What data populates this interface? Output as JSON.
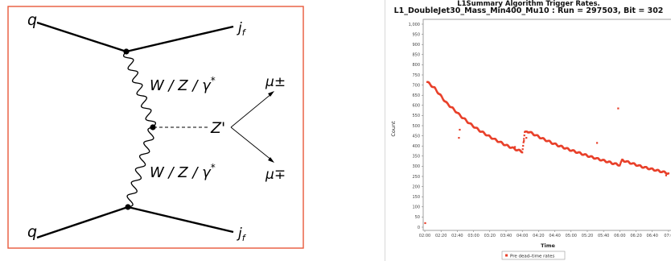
{
  "diagram": {
    "labels": {
      "q_top": "q",
      "q_bottom": "q",
      "jf_top": "j",
      "jf_bottom": "j",
      "jf_sub": "f",
      "boson_top": "W / Z / γ",
      "boson_bottom": "W / Z / γ",
      "star": "*",
      "zprime": "Z'",
      "mu_top": "μ±",
      "mu_bottom": "μ∓"
    },
    "colors": {
      "frame": "#e8593a",
      "lines": "#000000"
    }
  },
  "chart_data": {
    "type": "scatter",
    "title": "L1Summary Algorithm Trigger Rates.",
    "subtitle": "L1_DoubleJet30_Mass_Min400_Mu10 : Run = 297503, Bit = 302",
    "xlabel": "Time",
    "ylabel": "Count",
    "ylim": [
      0,
      1000
    ],
    "yticks": [
      "0",
      "50",
      "100",
      "150",
      "200",
      "250",
      "300",
      "350",
      "400",
      "450",
      "500",
      "550",
      "600",
      "650",
      "700",
      "750",
      "800",
      "850",
      "900",
      "950",
      "1,000"
    ],
    "xticks": [
      "02:00",
      "02:20",
      "02:40",
      "03:00",
      "03:20",
      "03:40",
      "04:00",
      "04:20",
      "04:40",
      "05:00",
      "05:20",
      "05:40",
      "06:00",
      "06:20",
      "06:40",
      "07:0"
    ],
    "legend": "Pre dead–time rates",
    "legend_position": "bottom",
    "marker_color": "#e8402a",
    "series": [
      {
        "name": "Pre dead–time rates",
        "points": [
          [
            "02:00",
            20
          ],
          [
            "02:03",
            715
          ],
          [
            "02:06",
            705
          ],
          [
            "02:09",
            695
          ],
          [
            "02:12",
            685
          ],
          [
            "02:15",
            670
          ],
          [
            "02:18",
            655
          ],
          [
            "02:21",
            640
          ],
          [
            "02:24",
            625
          ],
          [
            "02:27",
            610
          ],
          [
            "02:30",
            600
          ],
          [
            "02:33",
            590
          ],
          [
            "02:36",
            578
          ],
          [
            "02:39",
            568
          ],
          [
            "02:42",
            555
          ],
          [
            "02:45",
            545
          ],
          [
            "02:48",
            535
          ],
          [
            "02:51",
            525
          ],
          [
            "02:54",
            515
          ],
          [
            "02:57",
            505
          ],
          [
            "03:00",
            497
          ],
          [
            "03:03",
            488
          ],
          [
            "03:06",
            480
          ],
          [
            "03:09",
            472
          ],
          [
            "03:12",
            465
          ],
          [
            "03:15",
            458
          ],
          [
            "03:18",
            450
          ],
          [
            "03:21",
            443
          ],
          [
            "03:24",
            437
          ],
          [
            "03:27",
            430
          ],
          [
            "03:30",
            424
          ],
          [
            "03:33",
            418
          ],
          [
            "03:36",
            412
          ],
          [
            "03:39",
            405
          ],
          [
            "03:42",
            400
          ],
          [
            "03:45",
            395
          ],
          [
            "03:48",
            390
          ],
          [
            "03:51",
            385
          ],
          [
            "03:54",
            380
          ],
          [
            "03:57",
            376
          ],
          [
            "04:00",
            372
          ],
          [
            "04:03",
            465
          ],
          [
            "04:06",
            472
          ],
          [
            "04:09",
            468
          ],
          [
            "04:12",
            462
          ],
          [
            "04:15",
            456
          ],
          [
            "04:18",
            450
          ],
          [
            "04:21",
            444
          ],
          [
            "04:24",
            438
          ],
          [
            "04:27",
            432
          ],
          [
            "04:30",
            427
          ],
          [
            "04:33",
            422
          ],
          [
            "04:36",
            416
          ],
          [
            "04:39",
            411
          ],
          [
            "04:42",
            406
          ],
          [
            "04:45",
            401
          ],
          [
            "04:48",
            397
          ],
          [
            "04:51",
            392
          ],
          [
            "04:54",
            388
          ],
          [
            "04:57",
            383
          ],
          [
            "05:00",
            379
          ],
          [
            "05:03",
            375
          ],
          [
            "05:06",
            371
          ],
          [
            "05:09",
            367
          ],
          [
            "05:12",
            363
          ],
          [
            "05:15",
            359
          ],
          [
            "05:18",
            355
          ],
          [
            "05:21",
            351
          ],
          [
            "05:24",
            347
          ],
          [
            "05:27",
            343
          ],
          [
            "05:30",
            340
          ],
          [
            "05:33",
            336
          ],
          [
            "05:36",
            333
          ],
          [
            "05:39",
            329
          ],
          [
            "05:42",
            326
          ],
          [
            "05:45",
            322
          ],
          [
            "05:48",
            319
          ],
          [
            "05:51",
            315
          ],
          [
            "05:54",
            312
          ],
          [
            "05:57",
            309
          ],
          [
            "06:00",
            306
          ],
          [
            "06:03",
            330
          ],
          [
            "06:06",
            326
          ],
          [
            "06:09",
            322
          ],
          [
            "06:12",
            318
          ],
          [
            "06:15",
            314
          ],
          [
            "06:18",
            310
          ],
          [
            "06:21",
            306
          ],
          [
            "06:24",
            302
          ],
          [
            "06:27",
            298
          ],
          [
            "06:30",
            295
          ],
          [
            "06:33",
            292
          ],
          [
            "06:36",
            289
          ],
          [
            "06:39",
            286
          ],
          [
            "06:42",
            283
          ],
          [
            "06:45",
            280
          ],
          [
            "06:48",
            277
          ],
          [
            "06:51",
            274
          ],
          [
            "06:54",
            271
          ],
          [
            "06:57",
            268
          ],
          [
            "07:00",
            265
          ],
          [
            "02:42",
            440
          ],
          [
            "02:43",
            480
          ],
          [
            "03:51",
            395
          ],
          [
            "04:02",
            425
          ],
          [
            "04:05",
            440
          ],
          [
            "05:32",
            415
          ],
          [
            "05:58",
            585
          ],
          [
            "06:57",
            255
          ]
        ]
      }
    ]
  }
}
